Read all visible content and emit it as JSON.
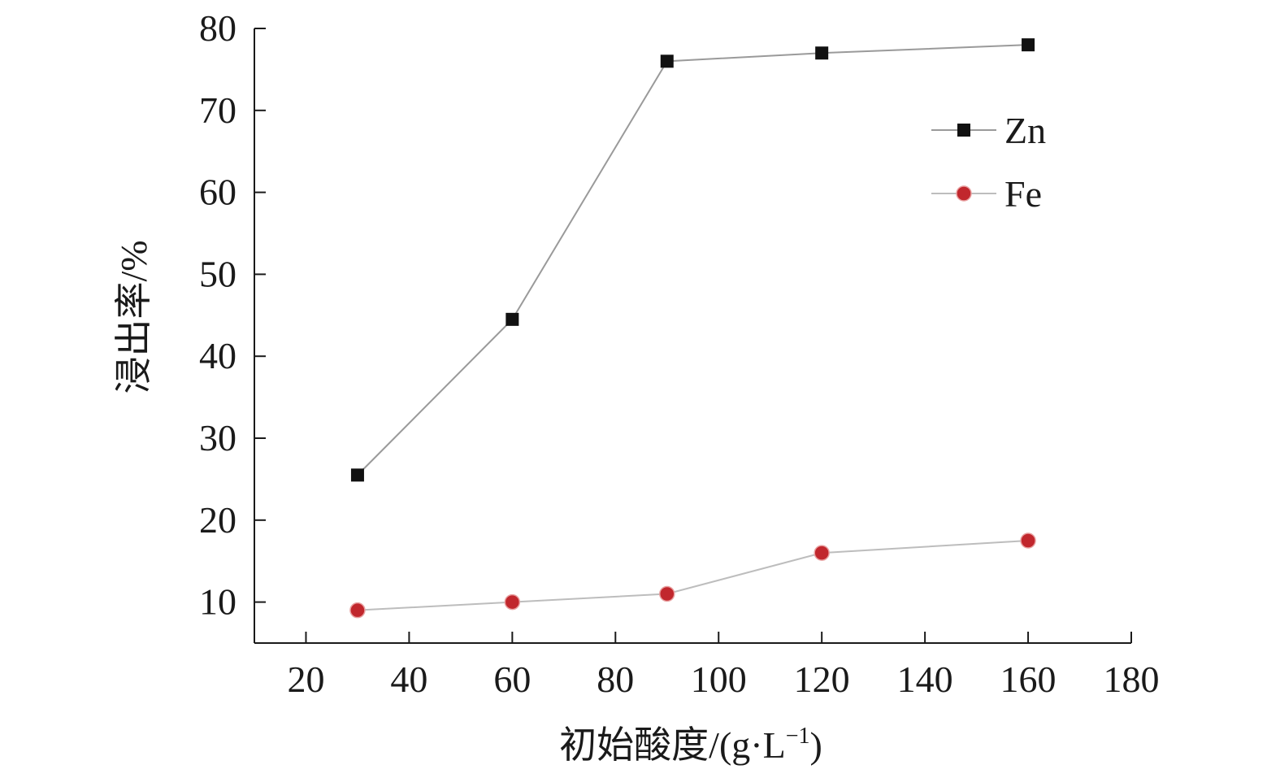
{
  "chart_data": {
    "type": "line",
    "title": "",
    "xlabel": "初始酸度/(g·L",
    "xlabel_sup": "−1",
    "xlabel_close": ")",
    "ylabel": "浸出率/%",
    "xlim": [
      10,
      180
    ],
    "ylim": [
      5,
      80
    ],
    "xticks": [
      20,
      40,
      60,
      80,
      100,
      120,
      140,
      160,
      180
    ],
    "yticks": [
      10,
      20,
      30,
      40,
      50,
      60,
      70,
      80
    ],
    "grid": false,
    "legend_position": "top-right",
    "x": [
      30,
      60,
      90,
      120,
      160
    ],
    "series": [
      {
        "name": "Zn",
        "values": [
          25.5,
          44.5,
          76,
          77,
          78
        ],
        "marker": "square",
        "color": "#111111",
        "line_color": "#9a9a9a"
      },
      {
        "name": "Fe",
        "values": [
          9,
          10,
          11,
          16,
          17.5
        ],
        "marker": "circle",
        "color": "#c1272d",
        "line_color": "#bdbdbd"
      }
    ]
  }
}
